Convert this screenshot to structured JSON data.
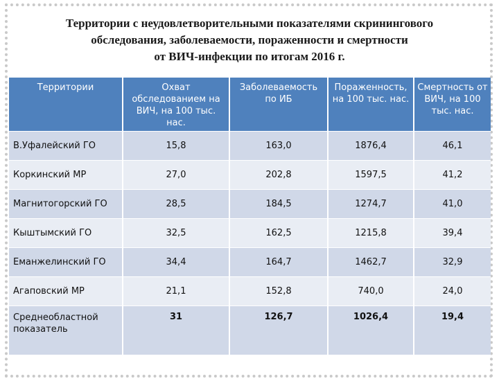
{
  "title": {
    "line1": "Территории с неудовлетворительными  показателями скринингового",
    "line2": "обследования, заболеваемости, пораженности и смертности",
    "line3": "от ВИЧ-инфекции по итогам 2016 г."
  },
  "table": {
    "headers": [
      "Территории",
      "Охват обследованием на ВИЧ, на 100 тыс. нас.",
      "Заболеваемость по ИБ",
      "Пораженность, на 100 тыс. нас.",
      "Смертность от ВИЧ, на 100 тыс. нас."
    ],
    "rows": [
      [
        "В.Уфалейский ГО",
        "15,8",
        "163,0",
        "1876,4",
        "46,1"
      ],
      [
        "Коркинский МР",
        "27,0",
        "202,8",
        "1597,5",
        "41,2"
      ],
      [
        "Магнитогорский ГО",
        "28,5",
        "184,5",
        "1274,7",
        "41,0"
      ],
      [
        "Кыштымский ГО",
        "32,5",
        "162,5",
        "1215,8",
        "39,4"
      ],
      [
        "Еманжелинский ГО",
        "34,4",
        "164,7",
        "1462,7",
        "32,9"
      ],
      [
        "Агаповский МР",
        "21,1",
        "152,8",
        "740,0",
        "24,0"
      ]
    ],
    "total": [
      "Среднеобластной показатель",
      "31",
      "126,7",
      "1026,4",
      "19,4"
    ]
  },
  "colors": {
    "header_bg": "#4f81bd",
    "row_dark": "#d0d8e8",
    "row_light": "#e9edf4"
  }
}
